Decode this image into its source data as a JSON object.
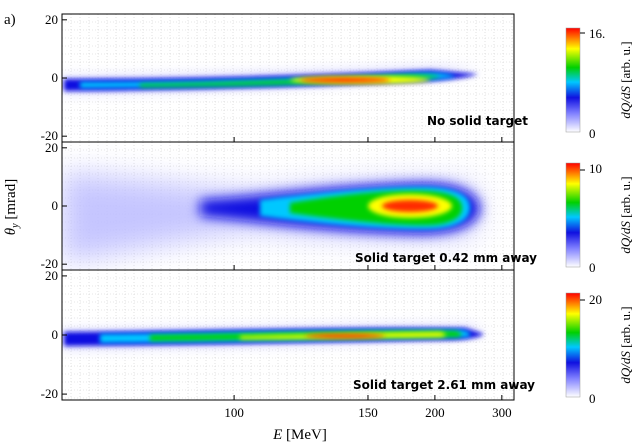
{
  "panel_label": "a)",
  "chart_data": {
    "type": "heatmap",
    "xlabel": "E [MeV]",
    "xlabel_var": "E",
    "xlabel_unit": " [MeV]",
    "ylabel": "θy [mrad]",
    "ylabel_var": "θ",
    "ylabel_sub": "y",
    "ylabel_unit": " [mrad]",
    "x_scale": "reciprocal",
    "x_ticks": [
      100,
      150,
      200,
      300
    ],
    "xlim": [
      70,
      330
    ],
    "grid": true,
    "colormap": [
      "#ffffff",
      "#1010e0",
      "#00c8ff",
      "#00d000",
      "#ffff00",
      "#ff0000"
    ],
    "panels": [
      {
        "annotation": "No solid target",
        "ylim": [
          -22,
          22
        ],
        "y_ticks": [
          20,
          0,
          -20
        ],
        "colorbar": {
          "label": "dQ/dS [arb. u.]",
          "label_var": "dQ/dS",
          "label_unit": " [arb. u.]",
          "ticks": [
            "16.",
            "0"
          ],
          "max": 16
        },
        "ridge": [
          [
            75,
            -3.5
          ],
          [
            100,
            -3.2
          ],
          [
            130,
            -2.5
          ],
          [
            160,
            -1.6
          ],
          [
            190,
            0.0
          ],
          [
            220,
            0.2
          ],
          [
            250,
            -0.5
          ]
        ],
        "peak": {
          "x": 180,
          "y": -1.0,
          "value": 16
        }
      },
      {
        "annotation": "Solid target 0.42 mm away",
        "ylim": [
          -22,
          22
        ],
        "y_ticks": [
          20,
          0,
          -20
        ],
        "colorbar": {
          "label": "dQ/dS [arb. u.]",
          "label_var": "dQ/dS",
          "label_unit": " [arb. u.]",
          "ticks": [
            "10",
            "0"
          ],
          "max": 10
        },
        "ridge": [
          [
            75,
            0
          ],
          [
            100,
            0
          ],
          [
            140,
            0
          ],
          [
            180,
            0.5
          ],
          [
            200,
            0.5
          ],
          [
            225,
            0
          ]
        ],
        "peak": {
          "x": 190,
          "y": 0.5,
          "value": 10
        }
      },
      {
        "annotation": "Solid target 2.61 mm away",
        "ylim": [
          -22,
          22
        ],
        "y_ticks": [
          20,
          0,
          -20
        ],
        "colorbar": {
          "label": "dQ/dS [arb. u.]",
          "label_var": "dQ/dS",
          "label_unit": " [arb. u.]",
          "ticks": [
            "20",
            "0"
          ],
          "max": 20
        },
        "ridge": [
          [
            75,
            -1.0
          ],
          [
            100,
            -0.6
          ],
          [
            130,
            0.0
          ],
          [
            160,
            0.6
          ],
          [
            200,
            1.0
          ],
          [
            240,
            1.0
          ]
        ],
        "peak": {
          "x": 160,
          "y": 0.3,
          "value": 20
        }
      }
    ]
  }
}
